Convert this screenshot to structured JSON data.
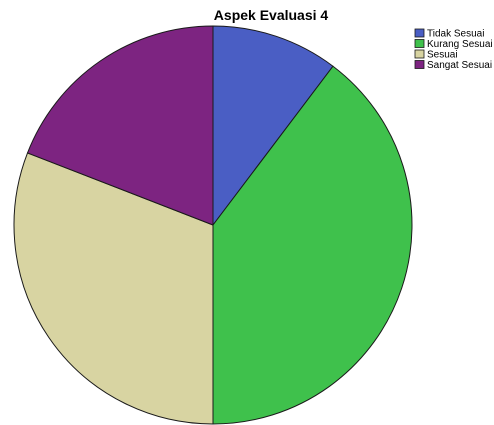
{
  "chart_data": {
    "type": "pie",
    "title": "Aspek Evaluasi 4",
    "legend_position": "top-right",
    "start_angle_deg": 0,
    "direction": "clockwise",
    "slices": [
      {
        "label": "Tidak Sesuai",
        "value": 10.3,
        "color": "#4a5ec4"
      },
      {
        "label": "Kurang Sesuai",
        "value": 39.7,
        "color": "#3fc14c"
      },
      {
        "label": "Sesuai",
        "value": 30.9,
        "color": "#d8d4a2"
      },
      {
        "label": "Sangat Sesuai",
        "value": 19.1,
        "color": "#7d2481"
      }
    ]
  }
}
